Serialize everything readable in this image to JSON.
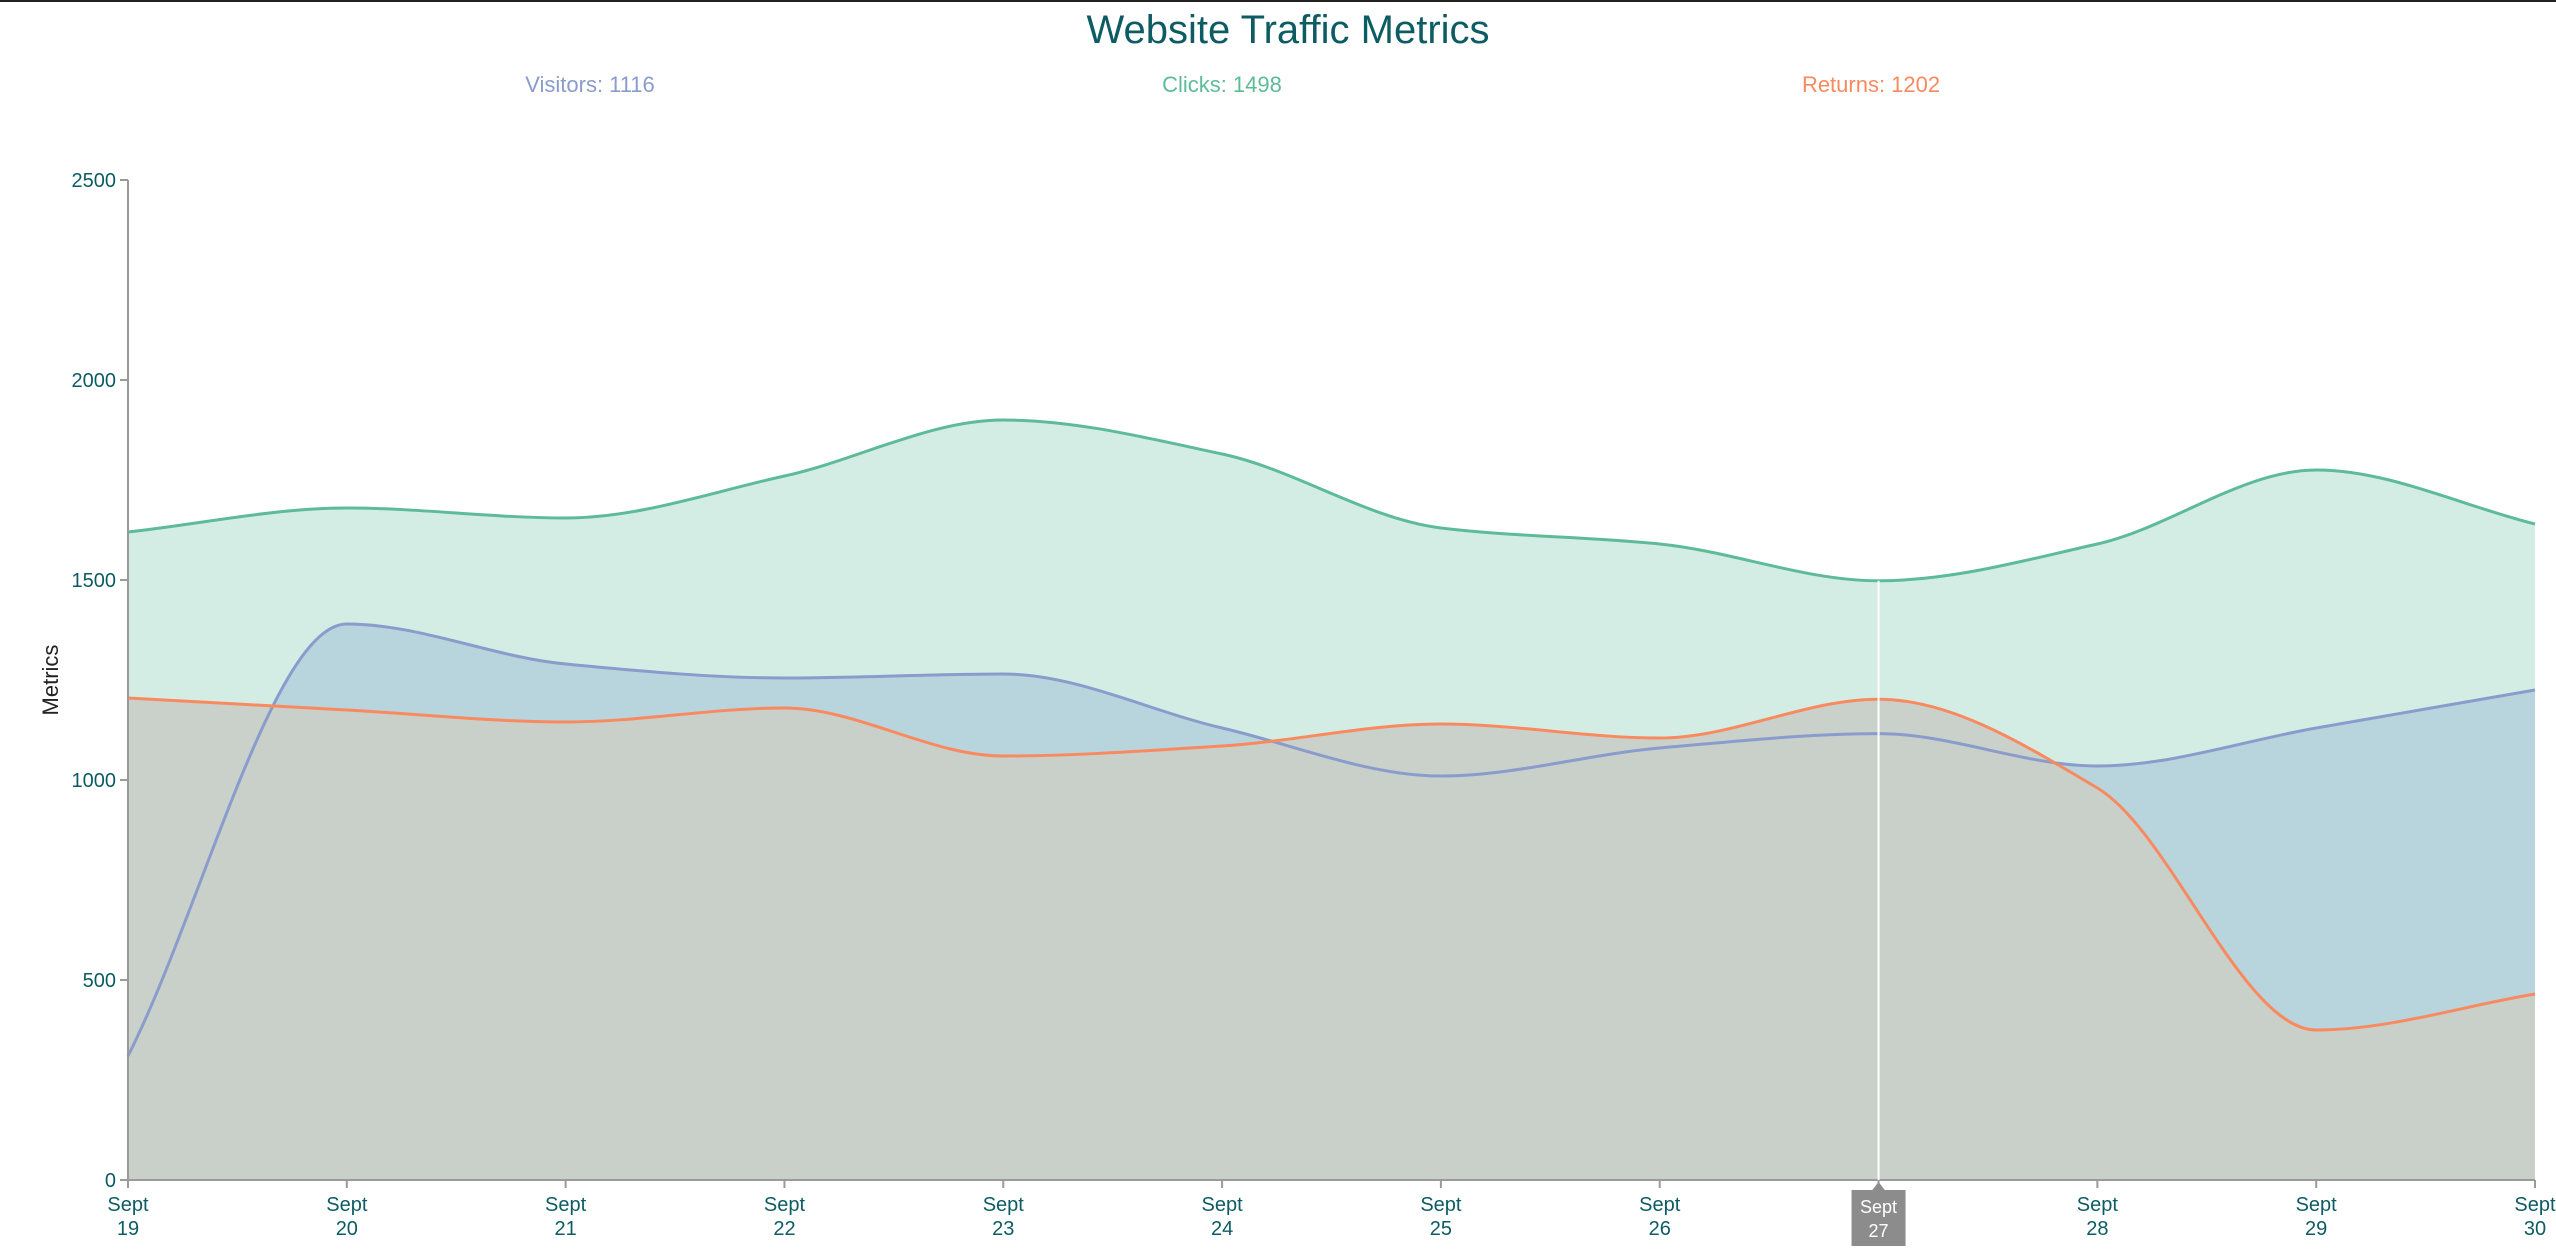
{
  "chart_data": {
    "type": "area",
    "title": "Website Traffic Metrics",
    "ylabel": "Metrics",
    "xlabel": "",
    "ylim": [
      0,
      2500
    ],
    "yticks": [
      0,
      500,
      1000,
      1500,
      2000,
      2500
    ],
    "categories": [
      [
        "Sept",
        "19"
      ],
      [
        "Sept",
        "20"
      ],
      [
        "Sept",
        "21"
      ],
      [
        "Sept",
        "22"
      ],
      [
        "Sept",
        "23"
      ],
      [
        "Sept",
        "24"
      ],
      [
        "Sept",
        "25"
      ],
      [
        "Sept",
        "26"
      ],
      [
        "Sept",
        "27"
      ],
      [
        "Sept",
        "28"
      ],
      [
        "Sept",
        "29"
      ],
      [
        "Sept",
        "30"
      ]
    ],
    "series": [
      {
        "name": "Clicks",
        "color": "#5dbb97",
        "fill": "#d2ece3",
        "values": [
          1620,
          1680,
          1655,
          1760,
          1900,
          1815,
          1630,
          1590,
          1498,
          1590,
          1775,
          1640
        ]
      },
      {
        "name": "Visitors",
        "color": "#8a9ccc",
        "fill": "#b6d4dc",
        "values": [
          310,
          1390,
          1290,
          1255,
          1265,
          1130,
          1010,
          1080,
          1116,
          1035,
          1130,
          1225
        ]
      },
      {
        "name": "Returns",
        "color": "#f98a5f",
        "fill": "#c9d0c8",
        "values": [
          1205,
          1175,
          1145,
          1180,
          1060,
          1085,
          1140,
          1105,
          1202,
          980,
          375,
          465
        ]
      }
    ],
    "legend": [
      {
        "label": "Visitors",
        "value": "1116",
        "color": "#8a9ccc"
      },
      {
        "label": "Clicks",
        "value": "1498",
        "color": "#5dbb97"
      },
      {
        "label": "Returns",
        "value": "1202",
        "color": "#f98a5f"
      }
    ],
    "highlight_index": 8,
    "grid": false
  }
}
